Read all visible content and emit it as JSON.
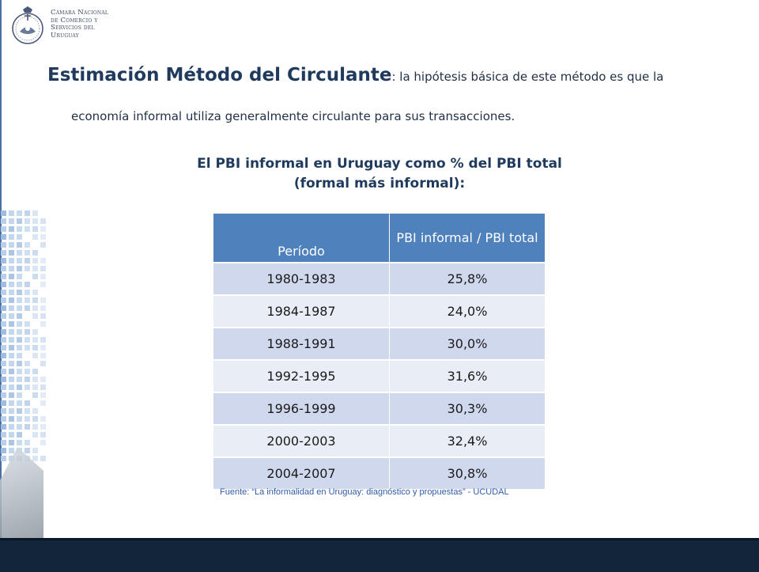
{
  "logo": {
    "lines": [
      "Cámara Nacional",
      "de Comercio y",
      "Servicios del",
      "Uruguay"
    ]
  },
  "heading": {
    "title": "Estimación Método del Circulante",
    "text_part1": ": la hipótesis básica de este método es que la",
    "text_part2": "economía informal utiliza generalmente circulante para sus transacciones."
  },
  "table_title": {
    "line1": "El PBI informal en Uruguay como % del PBI total",
    "line2": "(formal más informal):"
  },
  "table": {
    "headers": [
      "Período",
      "PBI informal / PBI total"
    ],
    "rows": [
      {
        "period": "1980-1983",
        "value": "25,8%"
      },
      {
        "period": "1984-1987",
        "value": "24,0%"
      },
      {
        "period": "1988-1991",
        "value": "30,0%"
      },
      {
        "period": "1992-1995",
        "value": "31,6%"
      },
      {
        "period": "1996-1999",
        "value": "30,3%"
      },
      {
        "period": "2000-2003",
        "value": "32,4%"
      },
      {
        "period": "2004-2007",
        "value": "30,8%"
      }
    ]
  },
  "source": "Fuente: “La informalidad en Uruguay: diagnóstico y propuestas” - UCUDAL",
  "colors": {
    "header_bg": "#4f81bd",
    "row_odd": "#d0d8ee",
    "row_even": "#e9edf6",
    "title_text": "#1f3a5c",
    "footer_bar": "#13253a"
  }
}
